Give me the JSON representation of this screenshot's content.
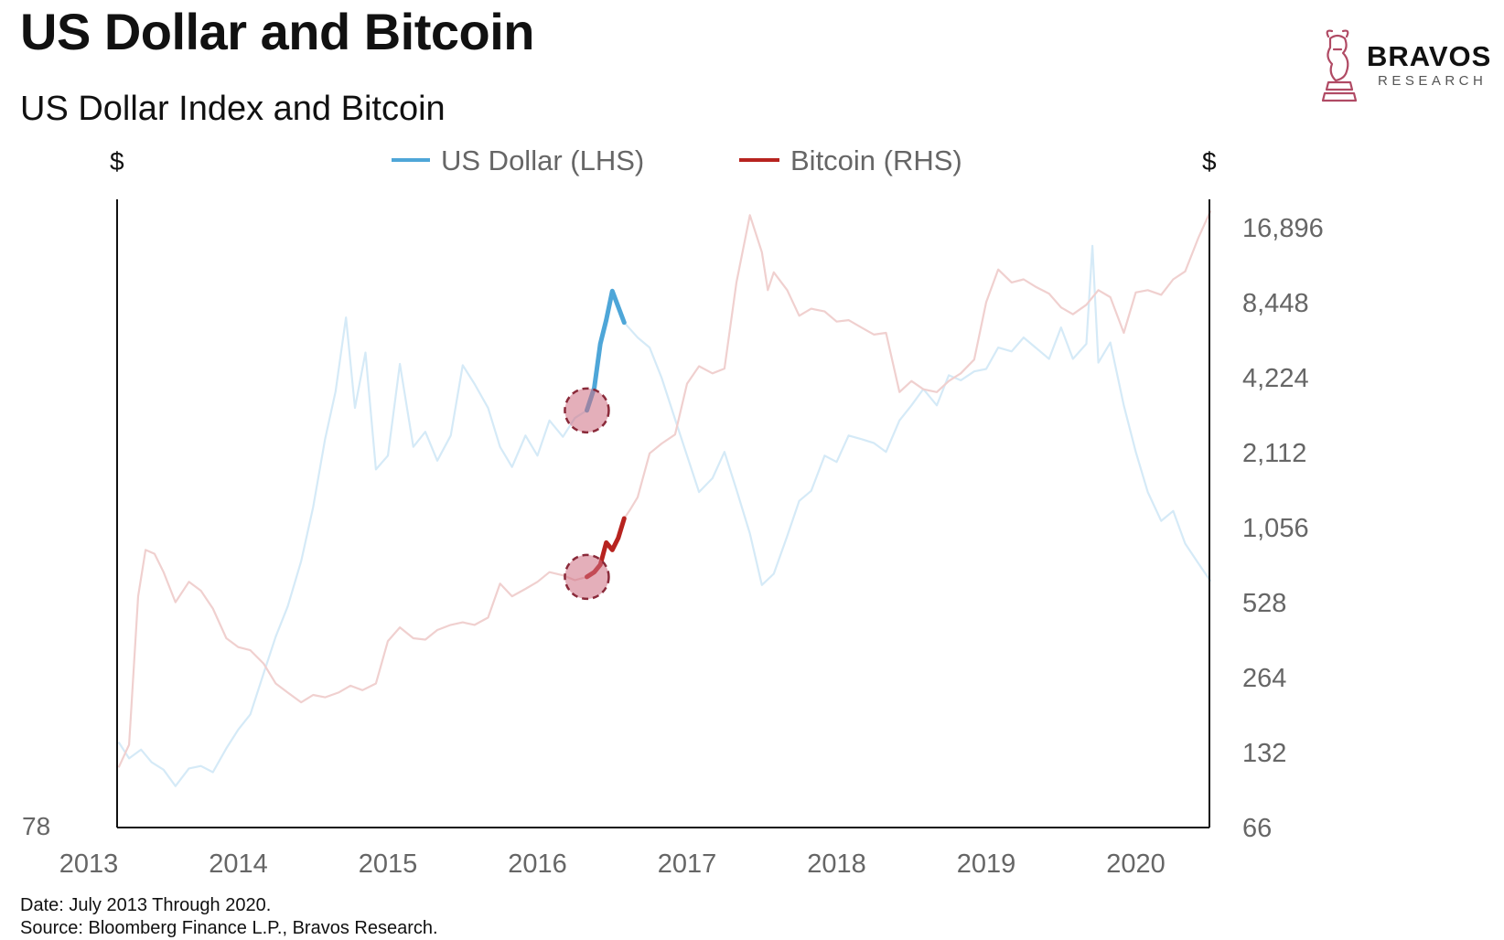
{
  "title": "US Dollar and Bitcoin",
  "logo": {
    "name": "BRAVOS",
    "subtitle": "RESEARCH",
    "icon": "bull-knight-icon",
    "color": "#b04a64"
  },
  "footer": {
    "date": "Date: July 2013 Through 2020.",
    "source": "Source: Bloomberg Finance L.P., Bravos Research."
  },
  "chart_data": {
    "type": "line",
    "title": "US Dollar Index and Bitcoin",
    "left_axis_unit": "$",
    "right_axis_unit": "$",
    "left_axis_tick": "78",
    "left_axis_min": 78,
    "right_axis_scale": "log",
    "right_axis_ticks": [
      "16,896",
      "8,448",
      "4,224",
      "2,112",
      "1,056",
      "528",
      "264",
      "132",
      "66"
    ],
    "right_axis_tick_values": [
      16896,
      8448,
      4224,
      2112,
      1056,
      528,
      264,
      132,
      66
    ],
    "x_ticks": [
      "2013",
      "2014",
      "2015",
      "2016",
      "2017",
      "2018",
      "2019",
      "2020"
    ],
    "x_range": [
      2013.0,
      2020.5
    ],
    "legend_position": "top-center",
    "grid": false,
    "highlight_window": [
      2016.33,
      2016.6
    ],
    "series": [
      {
        "name": "US Dollar (LHS)",
        "axis": "left",
        "color": "#4ea6d8",
        "faded_color": "#d5eaf7",
        "x": [
          2013.2,
          2013.27,
          2013.35,
          2013.42,
          2013.5,
          2013.58,
          2013.67,
          2013.75,
          2013.83,
          2013.92,
          2014.0,
          2014.08,
          2014.17,
          2014.25,
          2014.33,
          2014.42,
          2014.5,
          2014.58,
          2014.65,
          2014.72,
          2014.78,
          2014.85,
          2014.92,
          2015.0,
          2015.08,
          2015.17,
          2015.25,
          2015.33,
          2015.42,
          2015.5,
          2015.58,
          2015.67,
          2015.75,
          2015.83,
          2015.92,
          2016.0,
          2016.08,
          2016.17,
          2016.25,
          2016.33,
          2016.38,
          2016.42,
          2016.46,
          2016.5,
          2016.58,
          2016.67,
          2016.75,
          2016.83,
          2016.92,
          2017.0,
          2017.08,
          2017.17,
          2017.25,
          2017.33,
          2017.42,
          2017.5,
          2017.58,
          2017.67,
          2017.75,
          2017.83,
          2017.92,
          2018.0,
          2018.08,
          2018.17,
          2018.25,
          2018.33,
          2018.42,
          2018.5,
          2018.58,
          2018.67,
          2018.75,
          2018.83,
          2018.92,
          2019.0,
          2019.08,
          2019.17,
          2019.25,
          2019.33,
          2019.42,
          2019.5,
          2019.58,
          2019.67,
          2019.71,
          2019.75,
          2019.83,
          2019.92,
          2020.0,
          2020.08,
          2020.17,
          2020.25,
          2020.33,
          2020.42,
          2020.5
        ],
        "y": [
          84.8,
          83.5,
          84.2,
          83.2,
          82.6,
          81.3,
          82.7,
          82.9,
          82.4,
          84.3,
          85.8,
          87.0,
          90.3,
          93.2,
          95.6,
          99.2,
          103.5,
          108.9,
          112.7,
          118.6,
          111.4,
          115.8,
          106.5,
          107.6,
          114.9,
          108.3,
          109.5,
          107.2,
          109.2,
          114.8,
          113.3,
          111.4,
          108.3,
          106.7,
          109.2,
          107.6,
          110.4,
          109.1,
          110.6,
          111.2,
          113.0,
          116.5,
          118.4,
          120.7,
          118.2,
          117.0,
          116.2,
          113.8,
          110.5,
          107.6,
          104.7,
          105.8,
          107.9,
          104.9,
          101.4,
          97.3,
          98.2,
          101.2,
          104.0,
          104.8,
          107.6,
          107.1,
          109.2,
          108.9,
          108.6,
          107.9,
          110.4,
          111.6,
          112.9,
          111.6,
          114.0,
          113.6,
          114.3,
          114.5,
          116.2,
          115.9,
          117.0,
          116.2,
          115.3,
          117.8,
          115.3,
          116.5,
          124.3,
          115.0,
          116.6,
          111.6,
          107.9,
          104.7,
          102.4,
          103.2,
          100.6,
          99.0,
          97.6
        ]
      },
      {
        "name": "Bitcoin (RHS)",
        "axis": "right",
        "color": "#b7231f",
        "faded_color": "#f0d0cf",
        "x": [
          2013.2,
          2013.27,
          2013.33,
          2013.38,
          2013.44,
          2013.5,
          2013.58,
          2013.67,
          2013.75,
          2013.83,
          2013.92,
          2014.0,
          2014.08,
          2014.17,
          2014.25,
          2014.33,
          2014.42,
          2014.5,
          2014.58,
          2014.67,
          2014.75,
          2014.83,
          2014.92,
          2015.0,
          2015.08,
          2015.17,
          2015.25,
          2015.33,
          2015.42,
          2015.5,
          2015.58,
          2015.67,
          2015.75,
          2015.83,
          2015.92,
          2016.0,
          2016.08,
          2016.17,
          2016.25,
          2016.33,
          2016.38,
          2016.42,
          2016.46,
          2016.5,
          2016.54,
          2016.58,
          2016.62,
          2016.67,
          2016.75,
          2016.83,
          2016.92,
          2017.0,
          2017.08,
          2017.17,
          2017.25,
          2017.33,
          2017.42,
          2017.5,
          2017.54,
          2017.58,
          2017.67,
          2017.75,
          2017.83,
          2017.92,
          2018.0,
          2018.08,
          2018.17,
          2018.25,
          2018.33,
          2018.42,
          2018.5,
          2018.58,
          2018.67,
          2018.75,
          2018.83,
          2018.92,
          2019.0,
          2019.08,
          2019.17,
          2019.25,
          2019.33,
          2019.42,
          2019.5,
          2019.58,
          2019.67,
          2019.75,
          2019.83,
          2019.92,
          2020.0,
          2020.08,
          2020.17,
          2020.25,
          2020.33,
          2020.42,
          2020.5
        ],
        "y": [
          115,
          142,
          560,
          860,
          830,
          700,
          530,
          640,
          590,
          500,
          380,
          350,
          340,
          300,
          250,
          230,
          210,
          225,
          220,
          230,
          245,
          235,
          250,
          370,
          420,
          380,
          375,
          410,
          430,
          440,
          430,
          460,
          630,
          560,
          600,
          640,
          700,
          680,
          650,
          670,
          700,
          750,
          920,
          860,
          960,
          1150,
          1250,
          1400,
          2100,
          2300,
          2500,
          4000,
          4700,
          4400,
          4600,
          10200,
          19000,
          13500,
          9500,
          11200,
          9500,
          7500,
          8000,
          7800,
          7100,
          7200,
          6700,
          6300,
          6400,
          3700,
          4100,
          3800,
          3700,
          4100,
          4400,
          5000,
          8500,
          11500,
          10200,
          10500,
          9800,
          9200,
          8100,
          7600,
          8300,
          9500,
          8900,
          6400,
          9300,
          9500,
          9100,
          10500,
          11300,
          15500,
          19800
        ]
      }
    ]
  }
}
